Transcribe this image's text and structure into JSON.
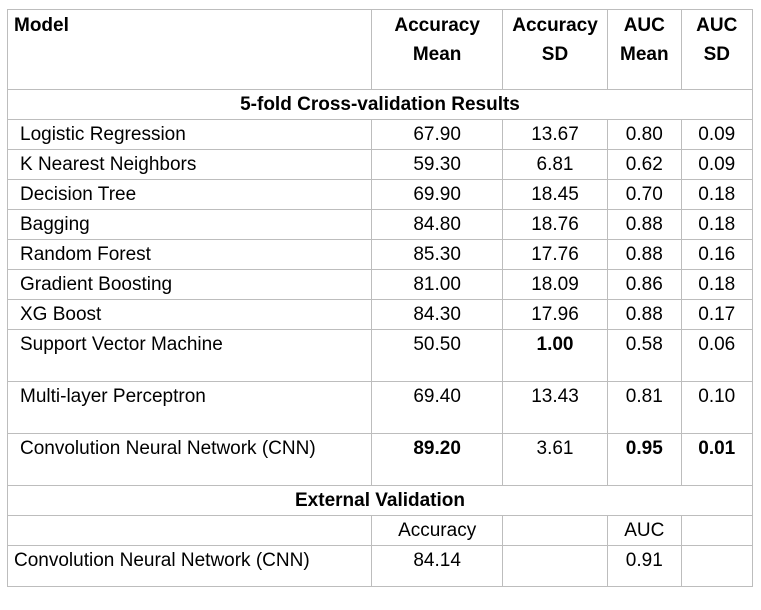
{
  "header": {
    "model": "Model",
    "acc_mean": [
      "Accuracy",
      "Mean"
    ],
    "acc_sd": [
      "Accuracy",
      "SD"
    ],
    "auc_mean": [
      "AUC",
      "Mean"
    ],
    "auc_sd": [
      "AUC",
      "SD"
    ]
  },
  "cv_section_title": "5-fold Cross-validation Results",
  "cv_rows": [
    {
      "model": "Logistic Regression",
      "acc_mean": "67.90",
      "acc_sd": "13.67",
      "auc_mean": "0.80",
      "auc_sd": "0.09"
    },
    {
      "model": "K Nearest Neighbors",
      "acc_mean": "59.30",
      "acc_sd": "6.81",
      "auc_mean": "0.62",
      "auc_sd": "0.09"
    },
    {
      "model": "Decision Tree",
      "acc_mean": "69.90",
      "acc_sd": "18.45",
      "auc_mean": "0.70",
      "auc_sd": "0.18"
    },
    {
      "model": "Bagging",
      "acc_mean": "84.80",
      "acc_sd": "18.76",
      "auc_mean": "0.88",
      "auc_sd": "0.18"
    },
    {
      "model": "Random Forest",
      "acc_mean": "85.30",
      "acc_sd": "17.76",
      "auc_mean": "0.88",
      "auc_sd": "0.16"
    },
    {
      "model": "Gradient Boosting",
      "acc_mean": "81.00",
      "acc_sd": "18.09",
      "auc_mean": "0.86",
      "auc_sd": "0.18"
    },
    {
      "model": "XG Boost",
      "acc_mean": "84.30",
      "acc_sd": "17.96",
      "auc_mean": "0.88",
      "auc_sd": "0.17"
    },
    {
      "model": "Support Vector Machine",
      "acc_mean": "50.50",
      "acc_sd": "1.00",
      "auc_mean": "0.58",
      "auc_sd": "0.06"
    },
    {
      "model": "Multi-layer Perceptron",
      "acc_mean": "69.40",
      "acc_sd": "13.43",
      "auc_mean": "0.81",
      "auc_sd": "0.10"
    },
    {
      "model": "Convolution Neural Network (CNN)",
      "acc_mean": "89.20",
      "acc_sd": "3.61",
      "auc_mean": "0.95",
      "auc_sd": "0.01"
    }
  ],
  "ext_section_title": "External Validation",
  "ext_labels": {
    "accuracy": "Accuracy",
    "auc": "AUC"
  },
  "ext_row": {
    "model": "Convolution Neural Network (CNN)",
    "accuracy": "84.14",
    "auc": "0.91"
  }
}
